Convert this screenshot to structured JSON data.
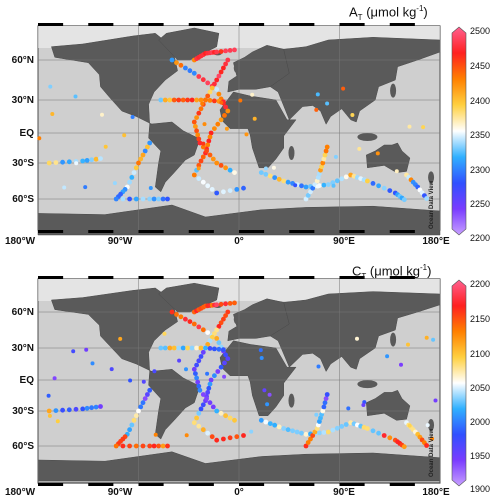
{
  "panels": [
    {
      "title_main": "A",
      "title_sub": "T",
      "title_unit": "(μmol kg",
      "title_sup": "-1",
      "title_close": ")",
      "colorbar": {
        "min": 2200,
        "max": 2500,
        "ticks": [
          "2500",
          "2450",
          "2400",
          "2350",
          "2300",
          "2250",
          "2200"
        ]
      },
      "watermark": "Ocean Data View"
    },
    {
      "title_main": "C",
      "title_sub": "T",
      "title_unit": "(μmol kg",
      "title_sup": "-1",
      "title_close": ")",
      "colorbar": {
        "min": 1900,
        "max": 2200,
        "ticks": [
          "2200",
          "2150",
          "2100",
          "2050",
          "2000",
          "1950",
          "1900"
        ]
      },
      "watermark": "Ocean Data View"
    }
  ],
  "lat_labels": [
    "60°N",
    "30°N",
    "EQ",
    "30°S",
    "60°S"
  ],
  "lon_labels": [
    "180°W",
    "90°W",
    "0°",
    "90°E",
    "180°E"
  ],
  "colors": {
    "land": "#5f5f5f",
    "ocean": "#d0d0d0",
    "colormap": [
      "#c8a0ff",
      "#7a3cff",
      "#3050ff",
      "#30b0ff",
      "#ffffff",
      "#ffd040",
      "#ff8000",
      "#ff2020",
      "#ff6090"
    ]
  }
}
